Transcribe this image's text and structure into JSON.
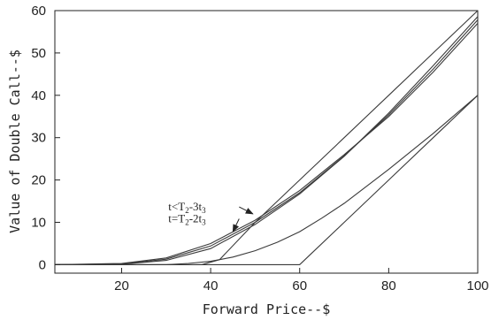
{
  "chart_data": {
    "type": "line",
    "xlabel": "Forward Price--$",
    "ylabel": "Value of Double Call--$",
    "xlim": [
      5,
      100
    ],
    "ylim": [
      -2,
      60
    ],
    "x_ticks": [
      20,
      40,
      60,
      80,
      100
    ],
    "y_ticks": [
      0,
      10,
      20,
      30,
      40,
      50,
      60
    ],
    "grid": false,
    "colors": {
      "line": "#3a3a3a",
      "axis": "#222222"
    },
    "series": [
      {
        "x": [
          5,
          20,
          30,
          40,
          50,
          60,
          70,
          80,
          90,
          100
        ],
        "y": [
          0,
          0.3,
          1.6,
          5,
          10.5,
          17.5,
          26,
          35,
          45.5,
          57
        ]
      },
      {
        "x": [
          5,
          20,
          30,
          40,
          50,
          60,
          70,
          80,
          90,
          100
        ],
        "y": [
          0,
          0.2,
          1.3,
          4.4,
          10,
          17,
          25.7,
          35.4,
          46.2,
          57.8
        ]
      },
      {
        "x": [
          5,
          20,
          30,
          40,
          50,
          60,
          70,
          80,
          90,
          100
        ],
        "y": [
          0,
          0.1,
          1.0,
          3.8,
          9.5,
          16.7,
          25.6,
          35.8,
          47,
          58.6
        ]
      },
      {
        "x": [
          5,
          30,
          35,
          40,
          45,
          50,
          55,
          60,
          65,
          70,
          80,
          90,
          100
        ],
        "y": [
          0,
          0,
          0.3,
          0.8,
          1.8,
          3.3,
          5.3,
          7.8,
          11,
          14.5,
          22.5,
          31,
          40
        ]
      },
      {
        "x": [
          5,
          38,
          42,
          50,
          60,
          70,
          80,
          90,
          100
        ],
        "y": [
          0,
          0,
          1.2,
          10,
          20,
          30,
          40,
          50,
          60
        ]
      },
      {
        "x": [
          5,
          60,
          62,
          70,
          80,
          90,
          100
        ],
        "y": [
          0,
          0,
          2,
          10,
          20,
          30,
          40
        ]
      }
    ],
    "annotations": [
      {
        "base": "t<T",
        "sub1": "2",
        "mid": "-3t",
        "sub2": "3",
        "x": 30.5,
        "y": 12.8,
        "arrow_to": [
          49.5,
          12
        ]
      },
      {
        "base": "t=T",
        "sub1": "2",
        "mid": "-2t",
        "sub2": "3",
        "x": 30.5,
        "y": 10.0,
        "arrow_to": [
          45,
          7.8
        ]
      }
    ]
  }
}
